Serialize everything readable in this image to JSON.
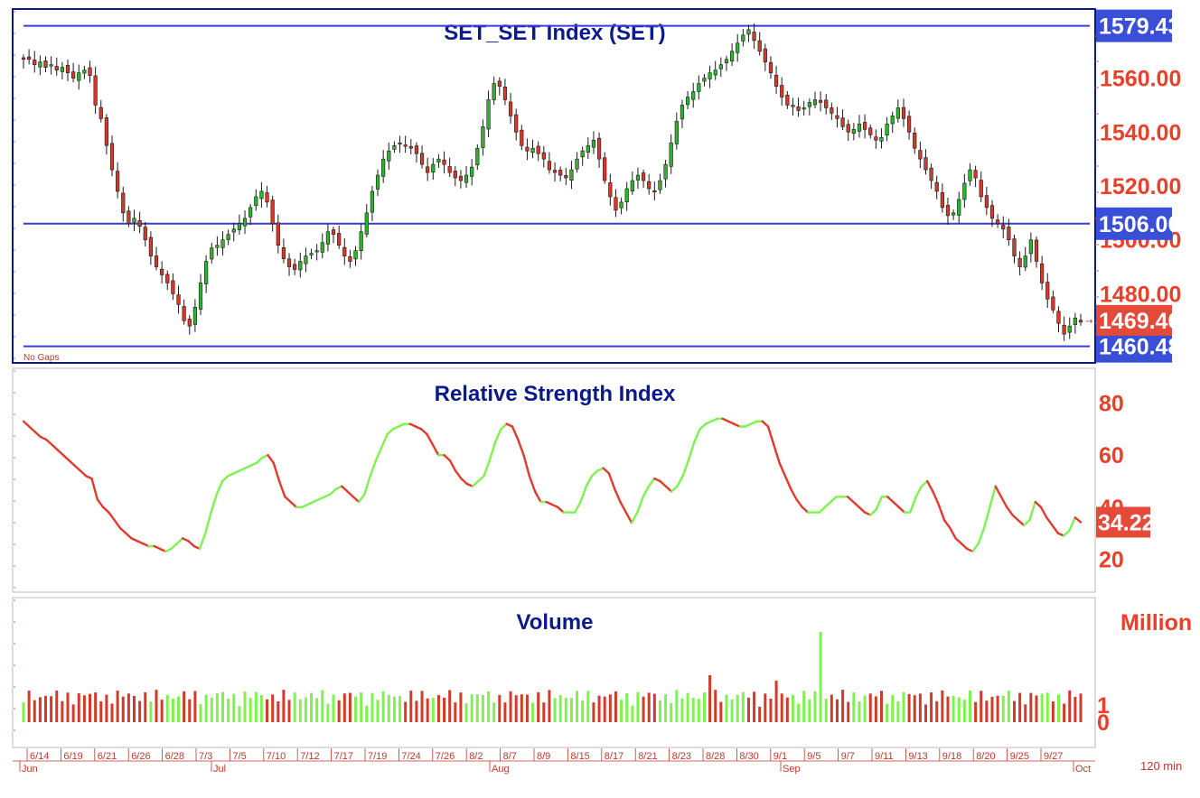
{
  "chart_data": [
    {
      "type": "candlestick",
      "title": "SET_SET Index (SET)",
      "ylim": [
        1455,
        1585
      ],
      "ticks": [
        "1480.00",
        "1500.00",
        "1520.00",
        "1540.00",
        "1560.00"
      ],
      "h_lines": [
        {
          "value": 1579.43,
          "label": "1579.43"
        },
        {
          "value": 1506.0,
          "label": "1506.00"
        },
        {
          "value": 1460.48,
          "label": "1460.48"
        }
      ],
      "last_value": {
        "value": 1469.46,
        "label": "1469.46"
      },
      "note": "No Gaps",
      "closes": [
        1567,
        1567,
        1565,
        1566,
        1564,
        1565,
        1563,
        1564,
        1562,
        1560,
        1562,
        1563,
        1561,
        1550,
        1545,
        1535,
        1526,
        1518,
        1510,
        1506,
        1508,
        1505,
        1500,
        1494,
        1490,
        1487,
        1484,
        1480,
        1476,
        1470,
        1468,
        1475,
        1484,
        1492,
        1497,
        1498,
        1500,
        1502,
        1504,
        1506,
        1508,
        1512,
        1516,
        1518,
        1514,
        1506,
        1498,
        1493,
        1490,
        1489,
        1492,
        1494,
        1495,
        1496,
        1499,
        1503,
        1502,
        1498,
        1494,
        1492,
        1496,
        1503,
        1510,
        1518,
        1524,
        1530,
        1533,
        1535,
        1536,
        1535,
        1534,
        1532,
        1528,
        1525,
        1528,
        1530,
        1528,
        1525,
        1523,
        1522,
        1524,
        1527,
        1534,
        1542,
        1552,
        1558,
        1557,
        1552,
        1546,
        1540,
        1535,
        1533,
        1534,
        1532,
        1530,
        1526,
        1525,
        1524,
        1523,
        1526,
        1530,
        1533,
        1535,
        1537,
        1530,
        1522,
        1516,
        1511,
        1514,
        1519,
        1522,
        1524,
        1522,
        1519,
        1518,
        1522,
        1528,
        1536,
        1544,
        1550,
        1553,
        1555,
        1558,
        1560,
        1562,
        1563,
        1565,
        1567,
        1570,
        1573,
        1576,
        1578,
        1574,
        1570,
        1566,
        1562,
        1557,
        1553,
        1550,
        1550,
        1548,
        1549,
        1551,
        1552,
        1551,
        1549,
        1547,
        1545,
        1542,
        1540,
        1541,
        1543,
        1541,
        1539,
        1537,
        1538,
        1543,
        1546,
        1549,
        1545,
        1540,
        1534,
        1530,
        1526,
        1522,
        1518,
        1512,
        1509,
        1510,
        1515,
        1521,
        1526,
        1523,
        1516,
        1512,
        1508,
        1506,
        1504,
        1500,
        1494,
        1490,
        1494,
        1500,
        1492,
        1484,
        1478,
        1474,
        1469,
        1465,
        1468,
        1471,
        1469.46
      ]
    },
    {
      "type": "line",
      "title": "Relative Strength Index",
      "ylim": [
        8,
        92
      ],
      "ticks": [
        "20",
        "40",
        "60",
        "80"
      ],
      "last_value": {
        "value": 34.22,
        "label": "34.22"
      },
      "values": [
        73,
        71,
        69,
        67,
        66,
        64,
        62,
        60,
        58,
        56,
        54,
        52,
        51,
        43,
        40,
        38,
        35,
        32,
        30,
        28,
        27,
        26,
        25,
        25,
        24,
        23,
        24,
        26,
        28,
        27,
        25,
        24,
        30,
        38,
        45,
        50,
        52,
        53,
        54,
        55,
        56,
        57,
        59,
        60,
        57,
        50,
        44,
        42,
        40,
        40,
        41,
        42,
        43,
        44,
        45,
        47,
        48,
        46,
        44,
        42,
        45,
        52,
        58,
        63,
        68,
        70,
        71,
        72,
        72,
        71,
        70,
        68,
        64,
        60,
        60,
        58,
        54,
        51,
        49,
        48,
        50,
        52,
        58,
        65,
        70,
        72,
        71,
        66,
        60,
        52,
        46,
        42,
        42,
        41,
        40,
        38,
        38,
        38,
        42,
        48,
        52,
        54,
        55,
        53,
        47,
        42,
        38,
        34,
        38,
        44,
        48,
        51,
        50,
        48,
        46,
        48,
        52,
        58,
        65,
        70,
        72,
        73,
        74,
        74,
        73,
        72,
        71,
        71,
        72,
        73,
        73,
        71,
        64,
        57,
        52,
        47,
        43,
        40,
        38,
        38,
        38,
        40,
        42,
        44,
        44,
        44,
        42,
        40,
        38,
        37,
        39,
        44,
        44,
        42,
        40,
        38,
        38,
        44,
        48,
        50,
        46,
        41,
        35,
        32,
        28,
        26,
        24,
        23,
        26,
        32,
        40,
        48,
        44,
        40,
        37,
        35,
        33,
        35,
        42,
        40,
        36,
        33,
        30,
        29,
        31,
        36,
        34.22
      ],
      "up_color": "#7ef24e",
      "down_color": "#e23a2c"
    },
    {
      "type": "bar",
      "title": "Volume",
      "unit": "Million",
      "ticks": [
        "0",
        "1"
      ],
      "ylim": [
        0,
        4
      ]
    }
  ],
  "x_axis": {
    "date_labels": [
      "6/14",
      "6/19",
      "6/21",
      "6/26",
      "6/28",
      "7/3",
      "7/5",
      "7/10",
      "7/12",
      "7/17",
      "7/19",
      "7/24",
      "7/26",
      "8/2",
      "8/7",
      "8/9",
      "8/15",
      "8/17",
      "8/21",
      "8/23",
      "8/28",
      "8/30",
      "9/1",
      "9/5",
      "9/7",
      "9/11",
      "9/13",
      "9/18",
      "8/20",
      "9/25",
      "9/27"
    ],
    "month_labels": [
      "Jun",
      "Jul",
      "Aug",
      "Sep",
      "Oct"
    ],
    "interval": "120 min"
  }
}
